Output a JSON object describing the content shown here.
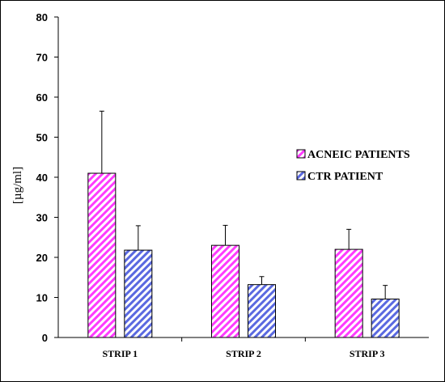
{
  "chart_data": {
    "type": "bar",
    "title": "",
    "xlabel": "",
    "ylabel": "[µg/ml]",
    "ylim": [
      0,
      80
    ],
    "yticks": [
      0,
      10,
      20,
      30,
      40,
      50,
      60,
      70,
      80
    ],
    "categories": [
      "STRIP 1",
      "STRIP 2",
      "STRIP 3"
    ],
    "series": [
      {
        "name": "ACNEIC PATIENTS",
        "values": [
          41,
          23,
          22
        ],
        "errors": [
          15.5,
          5,
          5
        ],
        "color": "#ff3bff",
        "hatch": "pink-diagonal"
      },
      {
        "name": "CTR PATIENT",
        "values": [
          21.8,
          13.2,
          9.6
        ],
        "errors": [
          6.1,
          2,
          3.4
        ],
        "color": "#3b4bdf",
        "hatch": "blue-diagonal"
      }
    ],
    "legend_position": "right",
    "grid": false
  }
}
